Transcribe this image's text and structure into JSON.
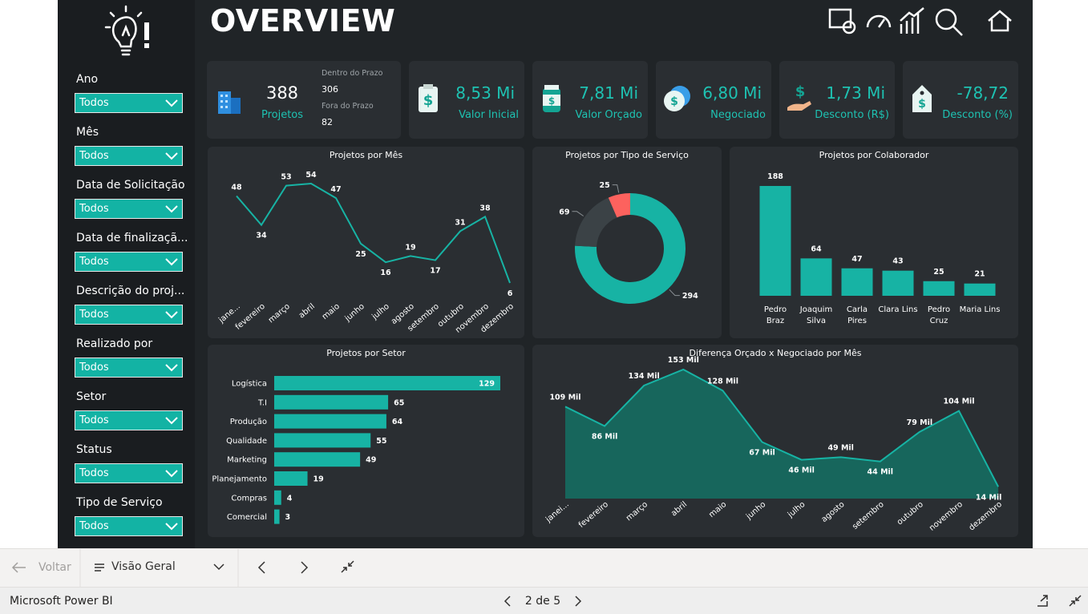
{
  "sidebar": {
    "filters": [
      {
        "label": "Ano",
        "value": "Todos"
      },
      {
        "label": "Mês",
        "value": "Todos"
      },
      {
        "label": "Data de Solicitação",
        "value": "Todos"
      },
      {
        "label": "Data de finalizaçã...",
        "value": "Todos"
      },
      {
        "label": "Descrição do proj...",
        "value": "Todos"
      },
      {
        "label": "Realizado por",
        "value": "Todos"
      },
      {
        "label": "Setor",
        "value": "Todos"
      },
      {
        "label": "Status",
        "value": "Todos"
      },
      {
        "label": "Tipo de Serviço",
        "value": "Todos"
      }
    ]
  },
  "header": {
    "title": "OVERVIEW"
  },
  "kpis": {
    "projects": {
      "value": 388,
      "label": "Projetos",
      "on_time_label": "Dentro do Prazo",
      "on_time": 306,
      "late_label": "Fora do Prazo",
      "late": 82
    },
    "cards": [
      {
        "value": "8,53 Mi",
        "label": "Valor Inicial"
      },
      {
        "value": "7,81 Mi",
        "label": "Valor Orçado"
      },
      {
        "value": "6,80 Mi",
        "label": "Negociado"
      },
      {
        "value": "1,73 Mi",
        "label": "Desconto (R$)"
      },
      {
        "value": "-78,72",
        "label": "Desconto (%)"
      }
    ]
  },
  "chart_data": [
    {
      "type": "line",
      "title": "Projetos por Mês",
      "categories": [
        "jane...",
        "fevereiro",
        "março",
        "abril",
        "maio",
        "junho",
        "julho",
        "agosto",
        "setembro",
        "outubro",
        "novembro",
        "dezembro"
      ],
      "values": [
        48,
        34,
        53,
        54,
        47,
        25,
        16,
        19,
        17,
        31,
        38,
        6
      ],
      "color": "#17b3a4"
    },
    {
      "type": "donut",
      "title": "Projetos por Tipo de Serviço",
      "values": [
        294,
        69,
        25
      ],
      "colors": [
        "#17b3a4",
        "#3b4246",
        "#fd625e"
      ]
    },
    {
      "type": "bar",
      "title": "Projetos por Colaborador",
      "categories": [
        "Pedro Braz",
        "Joaquim Silva",
        "Carla Pires",
        "Clara Lins",
        "Pedro Cruz",
        "Maria Lins"
      ],
      "values": [
        188,
        64,
        47,
        43,
        25,
        21
      ],
      "color": "#17b3a4"
    },
    {
      "type": "hbar",
      "title": "Projetos por Setor",
      "categories": [
        "Logística",
        "T.I",
        "Produção",
        "Qualidade",
        "Marketing",
        "Planejamento",
        "Compras",
        "Comercial"
      ],
      "values": [
        129,
        65,
        64,
        55,
        49,
        19,
        4,
        3
      ],
      "color": "#17b3a4"
    },
    {
      "type": "area",
      "title": "Diferença Orçado x Negociado por Mês",
      "categories": [
        "janei...",
        "fevereiro",
        "março",
        "abril",
        "maio",
        "junho",
        "julho",
        "agosto",
        "setembro",
        "outubro",
        "novembro",
        "dezembro"
      ],
      "values": [
        109,
        86,
        134,
        153,
        128,
        67,
        46,
        49,
        44,
        79,
        104,
        14
      ],
      "value_labels": [
        "109 Mil",
        "86 Mil",
        "134 Mil",
        "153 Mil",
        "128 Mil",
        "67 Mil",
        "46 Mil",
        "49 Mil",
        "44 Mil",
        "79 Mil",
        "104 Mil",
        "14 Mil"
      ],
      "color": "#17b3a4"
    }
  ],
  "navigation": {
    "back": "Voltar",
    "page_menu": "Visão Geral"
  },
  "status_bar": {
    "app": "Microsoft Power BI",
    "page": "2 de 5"
  }
}
